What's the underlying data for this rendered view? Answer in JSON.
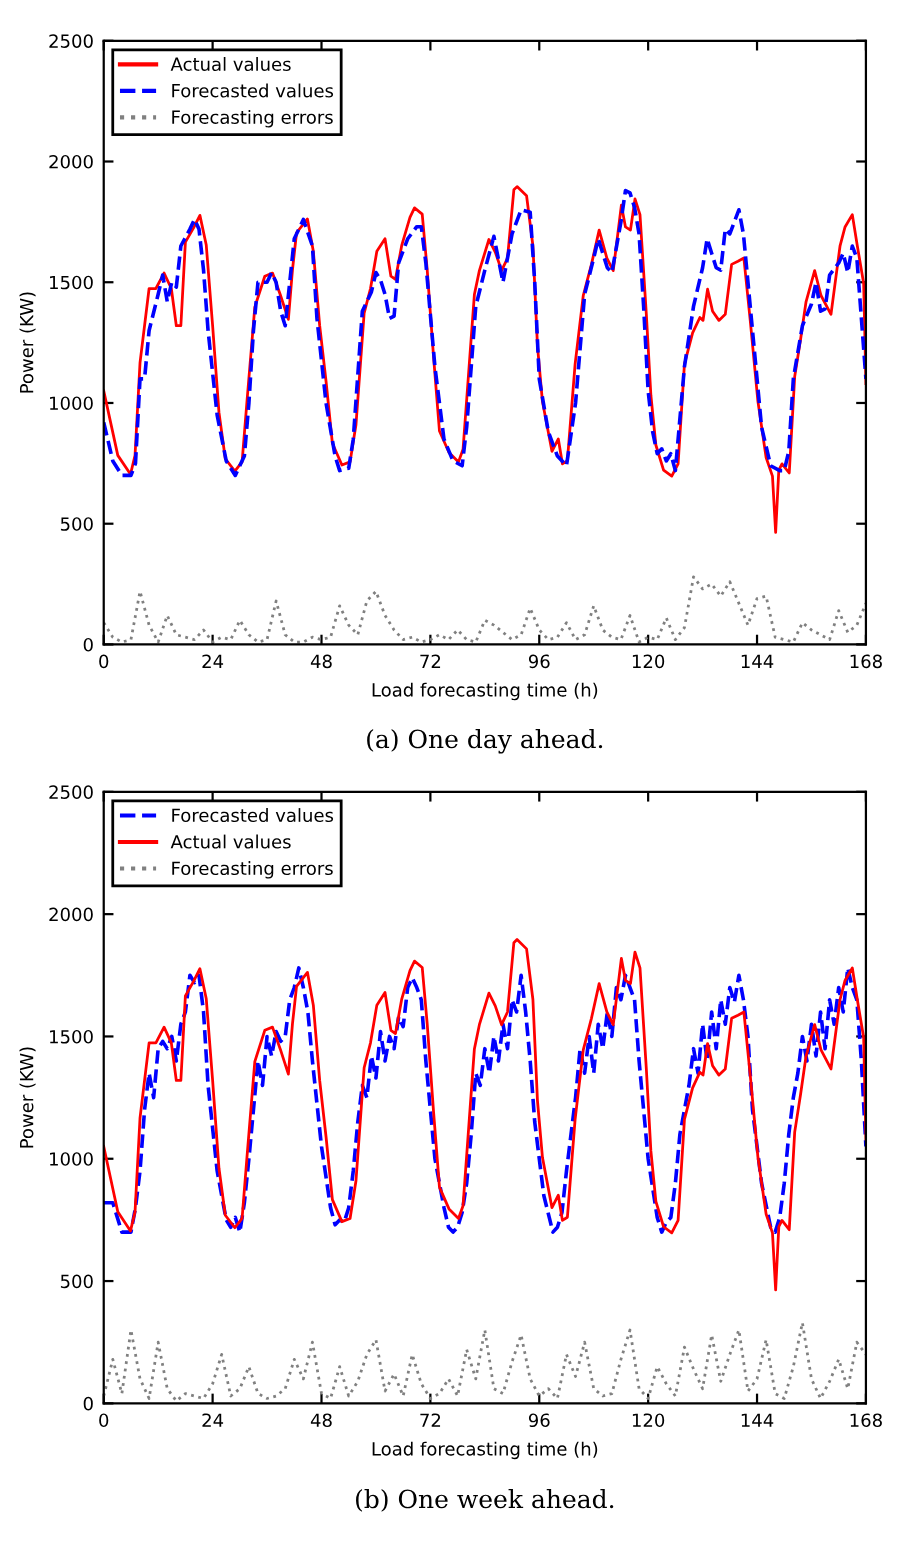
{
  "chart_data": [
    {
      "type": "line",
      "xlabel": "Load forecasting time (h)",
      "ylabel": "Power (KW)",
      "xlim": [
        0,
        168
      ],
      "ylim": [
        0,
        2500
      ],
      "xticks": [
        0,
        24,
        48,
        72,
        96,
        120,
        144,
        168
      ],
      "yticks": [
        0,
        500,
        1000,
        1500,
        2000,
        2500
      ],
      "legend": "top left",
      "annotations": [
        "(a) One day ahead."
      ],
      "series": [
        {
          "name": "Actual values",
          "color": "#ff0000",
          "line_style": "solid",
          "x": [
            0,
            3.1,
            5.9,
            6.9,
            8,
            10,
            11.5,
            13.3,
            14.9,
            16,
            17,
            18,
            19.8,
            21.2,
            22.6,
            24,
            25.4,
            26.8,
            28.9,
            30.5,
            31.6,
            33.3,
            35.5,
            37.2,
            38.9,
            40.7,
            41.6,
            42.5,
            44.9,
            46.2,
            47.6,
            49,
            50.4,
            52.5,
            54.3,
            55.6,
            57.4,
            58.8,
            60.2,
            62,
            63.3,
            64.3,
            65.7,
            67.5,
            68.5,
            70.2,
            71.3,
            72.7,
            74,
            76.1,
            78.2,
            79.2,
            80.6,
            81.7,
            82.8,
            84.9,
            86.3,
            87.7,
            89,
            90.4,
            91.1,
            93.2,
            94.6,
            95.6,
            96.7,
            98.8,
            100.2,
            101.1,
            102.2,
            103.9,
            105.7,
            107.5,
            109.2,
            110.9,
            112.3,
            114.1,
            115,
            116.1,
            117.1,
            118.2,
            119.6,
            120.6,
            121.7,
            123.4,
            125.2,
            126.6,
            128,
            129.8,
            131.4,
            132.1,
            133.1,
            134.2,
            135.6,
            137,
            138.4,
            139.8,
            141.1,
            142.5,
            144.2,
            146,
            147.4,
            148.1,
            148.8,
            149.5,
            151.1,
            152.3,
            153.6,
            154.8,
            156.7,
            158.1,
            160.3,
            162.3,
            163.4,
            165,
            166.1,
            167.5,
            168
          ],
          "values": [
            1050,
            783,
            705,
            783,
            1167,
            1474,
            1474,
            1538,
            1474,
            1320,
            1320,
            1666,
            1725,
            1777,
            1654,
            1320,
            961,
            769,
            718,
            756,
            1013,
            1397,
            1525,
            1538,
            1449,
            1346,
            1551,
            1705,
            1762,
            1628,
            1320,
            1090,
            833,
            743,
            756,
            910,
            1372,
            1474,
            1628,
            1680,
            1525,
            1512,
            1654,
            1769,
            1808,
            1782,
            1551,
            1192,
            884,
            795,
            756,
            808,
            1167,
            1449,
            1548,
            1677,
            1625,
            1548,
            1600,
            1883,
            1896,
            1858,
            1651,
            1238,
            1006,
            800,
            851,
            748,
            761,
            1161,
            1445,
            1574,
            1716,
            1600,
            1548,
            1819,
            1729,
            1716,
            1845,
            1780,
            1367,
            1032,
            826,
            722,
            697,
            748,
            1161,
            1290,
            1354,
            1342,
            1471,
            1380,
            1342,
            1367,
            1574,
            1587,
            1600,
            1342,
            1006,
            774,
            697,
            464,
            722,
            748,
            710,
            1109,
            1264,
            1419,
            1548,
            1445,
            1367,
            1651,
            1729,
            1780,
            1651,
            1496,
            1080
          ]
        },
        {
          "name": "Forecasted values",
          "color": "#0000ff",
          "line_style": "dashed",
          "x": [
            0,
            2,
            4,
            6,
            7,
            8,
            9,
            10,
            12,
            13,
            14,
            15,
            16,
            17,
            19,
            20,
            21,
            22,
            23,
            25,
            27,
            29,
            31,
            32,
            33,
            34,
            36,
            37,
            38,
            39,
            40,
            41,
            42,
            44,
            46,
            47,
            49,
            51,
            52,
            54,
            55,
            57,
            59,
            60,
            61,
            62,
            63,
            64,
            65,
            67,
            69,
            70,
            71,
            73,
            75,
            77,
            79,
            80,
            82,
            84,
            86,
            88,
            90,
            92,
            94,
            95,
            96,
            98,
            100,
            102,
            104,
            106,
            108,
            109,
            111,
            112,
            114,
            115,
            116,
            117,
            118,
            119,
            120,
            121,
            122,
            123,
            124,
            125,
            126,
            128,
            130,
            132,
            133,
            134,
            135,
            136,
            137,
            138,
            140,
            141,
            143,
            145,
            147,
            149,
            150,
            151,
            152,
            154,
            156,
            157,
            158,
            159,
            160,
            162,
            163,
            164,
            165,
            166,
            168
          ],
          "values": [
            920,
            760,
            700,
            700,
            750,
            1100,
            1100,
            1300,
            1450,
            1530,
            1420,
            1500,
            1480,
            1650,
            1720,
            1760,
            1720,
            1550,
            1300,
            950,
            760,
            700,
            780,
            1000,
            1300,
            1500,
            1500,
            1540,
            1500,
            1380,
            1320,
            1500,
            1680,
            1760,
            1650,
            1350,
            1000,
            780,
            720,
            730,
            850,
            1380,
            1460,
            1540,
            1510,
            1450,
            1350,
            1360,
            1580,
            1680,
            1730,
            1730,
            1580,
            1150,
            850,
            760,
            740,
            900,
            1400,
            1550,
            1690,
            1500,
            1700,
            1800,
            1790,
            1500,
            1100,
            880,
            780,
            740,
            1000,
            1450,
            1600,
            1680,
            1560,
            1540,
            1750,
            1880,
            1870,
            1810,
            1700,
            1400,
            1050,
            880,
            790,
            810,
            760,
            790,
            720,
            1150,
            1400,
            1560,
            1680,
            1620,
            1560,
            1550,
            1720,
            1700,
            1800,
            1700,
            1300,
            900,
            740,
            720,
            720,
            800,
            1100,
            1320,
            1410,
            1500,
            1380,
            1390,
            1530,
            1580,
            1620,
            1540,
            1650,
            1600,
            1100
          ]
        },
        {
          "name": "Forecasting errors",
          "color": "#808080",
          "line_style": "dotted",
          "x": [
            0,
            2,
            4,
            6,
            8,
            10,
            12,
            14,
            16,
            18,
            20,
            22,
            24,
            26,
            28,
            30,
            32,
            34,
            36,
            38,
            40,
            42,
            44,
            46,
            48,
            50,
            52,
            54,
            56,
            58,
            60,
            62,
            64,
            66,
            68,
            70,
            72,
            74,
            76,
            78,
            80,
            82,
            84,
            86,
            88,
            90,
            92,
            94,
            96,
            98,
            100,
            102,
            104,
            106,
            108,
            110,
            112,
            114,
            116,
            118,
            120,
            122,
            124,
            126,
            128,
            130,
            132,
            134,
            136,
            138,
            140,
            142,
            144,
            146,
            148,
            150,
            152,
            154,
            156,
            158,
            160,
            162,
            164,
            166,
            168
          ],
          "values": [
            90,
            30,
            10,
            20,
            220,
            80,
            10,
            120,
            40,
            30,
            20,
            60,
            10,
            30,
            20,
            100,
            40,
            10,
            20,
            180,
            40,
            10,
            10,
            30,
            20,
            30,
            160,
            80,
            40,
            180,
            220,
            120,
            60,
            20,
            30,
            10,
            20,
            40,
            20,
            60,
            20,
            10,
            100,
            80,
            50,
            20,
            40,
            150,
            60,
            20,
            30,
            90,
            20,
            40,
            160,
            60,
            30,
            20,
            120,
            10,
            30,
            20,
            110,
            20,
            70,
            280,
            230,
            250,
            200,
            260,
            170,
            80,
            190,
            200,
            30,
            20,
            10,
            90,
            60,
            40,
            20,
            140,
            50,
            80,
            170
          ]
        }
      ]
    },
    {
      "type": "line",
      "xlabel": "Load forecasting time (h)",
      "ylabel": "Power (KW)",
      "xlim": [
        0,
        168
      ],
      "ylim": [
        0,
        2500
      ],
      "xticks": [
        0,
        24,
        48,
        72,
        96,
        120,
        144,
        168
      ],
      "yticks": [
        0,
        500,
        1000,
        1500,
        2000,
        2500
      ],
      "legend": "top left",
      "annotations": [
        "(b) One week ahead."
      ],
      "series": [
        {
          "name": "Forecasted values",
          "color": "#0000ff",
          "line_style": "dashed",
          "x": [
            0,
            2,
            4,
            6,
            7,
            8,
            9,
            10,
            11,
            12,
            13,
            14,
            15,
            16,
            17,
            18,
            19,
            20,
            21,
            22,
            23,
            25,
            27,
            28,
            29,
            30,
            31,
            32,
            33,
            34,
            35,
            36,
            37,
            38,
            39,
            40,
            41,
            42,
            43,
            44,
            45,
            46,
            48,
            50,
            51,
            52,
            53,
            54,
            55,
            56,
            57,
            58,
            59,
            60,
            61,
            62,
            63,
            64,
            65,
            66,
            67,
            68,
            69,
            70,
            71,
            73,
            75,
            76,
            77,
            78,
            79,
            80,
            81,
            82,
            83,
            84,
            85,
            86,
            87,
            88,
            89,
            90,
            91,
            92,
            93,
            94,
            95,
            97,
            99,
            100,
            101,
            102,
            103,
            104,
            105,
            106,
            107,
            108,
            109,
            110,
            111,
            112,
            113,
            114,
            115,
            116,
            117,
            118,
            120,
            122,
            123,
            124,
            125,
            126,
            127,
            128,
            129,
            130,
            131,
            132,
            133,
            134,
            135,
            136,
            137,
            138,
            139,
            140,
            141,
            142,
            143,
            145,
            147,
            148,
            149,
            150,
            151,
            152,
            153,
            154,
            155,
            156,
            157,
            158,
            159,
            160,
            161,
            162,
            163,
            164,
            165,
            166,
            167,
            168
          ],
          "values": [
            820,
            820,
            700,
            700,
            800,
            950,
            1200,
            1350,
            1250,
            1450,
            1480,
            1450,
            1500,
            1400,
            1550,
            1600,
            1750,
            1720,
            1750,
            1600,
            1300,
            950,
            750,
            720,
            760,
            700,
            820,
            1000,
            1200,
            1400,
            1300,
            1500,
            1420,
            1520,
            1480,
            1500,
            1650,
            1700,
            1780,
            1700,
            1600,
            1400,
            1050,
            800,
            730,
            750,
            740,
            800,
            950,
            1150,
            1300,
            1250,
            1420,
            1330,
            1520,
            1400,
            1500,
            1450,
            1580,
            1540,
            1700,
            1740,
            1700,
            1650,
            1400,
            1000,
            800,
            720,
            700,
            720,
            780,
            900,
            1100,
            1350,
            1300,
            1450,
            1350,
            1500,
            1400,
            1550,
            1450,
            1650,
            1600,
            1750,
            1600,
            1400,
            1150,
            850,
            700,
            720,
            780,
            950,
            1100,
            1250,
            1450,
            1350,
            1500,
            1350,
            1550,
            1450,
            1600,
            1500,
            1700,
            1650,
            1750,
            1700,
            1650,
            1400,
            1000,
            760,
            700,
            740,
            760,
            900,
            1100,
            1200,
            1300,
            1450,
            1350,
            1550,
            1400,
            1600,
            1450,
            1650,
            1550,
            1700,
            1640,
            1750,
            1650,
            1500,
            1200,
            900,
            720,
            700,
            760,
            900,
            1100,
            1250,
            1350,
            1500,
            1400,
            1550,
            1420,
            1600,
            1450,
            1650,
            1550,
            1700,
            1600,
            1780,
            1700,
            1650,
            1400,
            1050
          ]
        },
        {
          "name": "Actual values",
          "color": "#ff0000",
          "line_style": "solid",
          "x": [
            0,
            3.1,
            5.9,
            6.9,
            8,
            10,
            11.5,
            13.3,
            14.9,
            16,
            17,
            18,
            19.8,
            21.2,
            22.6,
            24,
            25.4,
            26.8,
            28.9,
            30.5,
            31.6,
            33.3,
            35.5,
            37.2,
            38.9,
            40.7,
            41.6,
            42.5,
            44.9,
            46.2,
            47.6,
            49,
            50.4,
            52.5,
            54.3,
            55.6,
            57.4,
            58.8,
            60.2,
            62,
            63.3,
            64.3,
            65.7,
            67.5,
            68.5,
            70.2,
            71.3,
            72.7,
            74,
            76.1,
            78.2,
            79.2,
            80.6,
            81.7,
            82.8,
            84.9,
            86.3,
            87.7,
            89,
            90.4,
            91.1,
            93.2,
            94.6,
            95.6,
            96.7,
            98.8,
            100.2,
            101.1,
            102.2,
            103.9,
            105.7,
            107.5,
            109.2,
            110.9,
            112.3,
            114.1,
            115,
            116.1,
            117.1,
            118.2,
            119.6,
            120.6,
            121.7,
            123.4,
            125.2,
            126.6,
            128,
            129.8,
            131.4,
            132.1,
            133.1,
            134.2,
            135.6,
            137,
            138.4,
            139.8,
            141.1,
            142.5,
            144.2,
            146,
            147.4,
            148.1,
            148.8,
            149.5,
            151.1,
            152.3,
            153.6,
            154.8,
            156.7,
            158.1,
            160.3,
            162.3,
            163.4,
            165,
            166.1,
            167.5,
            168
          ],
          "values": [
            1050,
            783,
            705,
            783,
            1167,
            1474,
            1474,
            1538,
            1474,
            1320,
            1320,
            1666,
            1725,
            1777,
            1654,
            1320,
            961,
            769,
            718,
            756,
            1013,
            1397,
            1525,
            1538,
            1449,
            1346,
            1551,
            1705,
            1762,
            1628,
            1320,
            1090,
            833,
            743,
            756,
            910,
            1372,
            1474,
            1628,
            1680,
            1525,
            1512,
            1654,
            1769,
            1808,
            1782,
            1551,
            1192,
            884,
            795,
            756,
            808,
            1167,
            1449,
            1548,
            1677,
            1625,
            1548,
            1600,
            1883,
            1896,
            1858,
            1651,
            1238,
            1006,
            800,
            851,
            748,
            761,
            1161,
            1445,
            1574,
            1716,
            1600,
            1548,
            1819,
            1729,
            1716,
            1845,
            1780,
            1367,
            1032,
            826,
            722,
            697,
            748,
            1161,
            1290,
            1354,
            1342,
            1471,
            1380,
            1342,
            1367,
            1574,
            1587,
            1600,
            1342,
            1006,
            774,
            697,
            464,
            722,
            748,
            710,
            1109,
            1264,
            1419,
            1548,
            1445,
            1367,
            1651,
            1729,
            1780,
            1651,
            1496,
            1080
          ]
        },
        {
          "name": "Forecasting errors",
          "color": "#808080",
          "line_style": "dotted",
          "x": [
            0,
            2,
            4,
            6,
            8,
            10,
            12,
            14,
            16,
            18,
            20,
            22,
            24,
            26,
            28,
            30,
            32,
            34,
            36,
            38,
            40,
            42,
            44,
            46,
            48,
            50,
            52,
            54,
            56,
            58,
            60,
            62,
            64,
            66,
            68,
            70,
            72,
            74,
            76,
            78,
            80,
            82,
            84,
            86,
            88,
            90,
            92,
            94,
            96,
            98,
            100,
            102,
            104,
            106,
            108,
            110,
            112,
            114,
            116,
            118,
            120,
            122,
            124,
            126,
            128,
            130,
            132,
            134,
            136,
            138,
            140,
            142,
            144,
            146,
            148,
            150,
            152,
            154,
            156,
            158,
            160,
            162,
            164,
            166,
            168
          ],
          "values": [
            30,
            180,
            40,
            300,
            100,
            20,
            250,
            60,
            10,
            40,
            30,
            20,
            80,
            200,
            30,
            60,
            150,
            40,
            20,
            30,
            60,
            180,
            100,
            250,
            40,
            20,
            150,
            30,
            90,
            200,
            260,
            50,
            120,
            30,
            200,
            80,
            20,
            40,
            100,
            30,
            220,
            100,
            300,
            60,
            40,
            170,
            280,
            100,
            30,
            60,
            20,
            200,
            110,
            250,
            60,
            30,
            40,
            180,
            300,
            60,
            20,
            150,
            80,
            30,
            230,
            140,
            60,
            280,
            90,
            200,
            300,
            50,
            100,
            260,
            40,
            20,
            150,
            330,
            100,
            20,
            90,
            180,
            60,
            250,
            200
          ]
        }
      ]
    }
  ]
}
